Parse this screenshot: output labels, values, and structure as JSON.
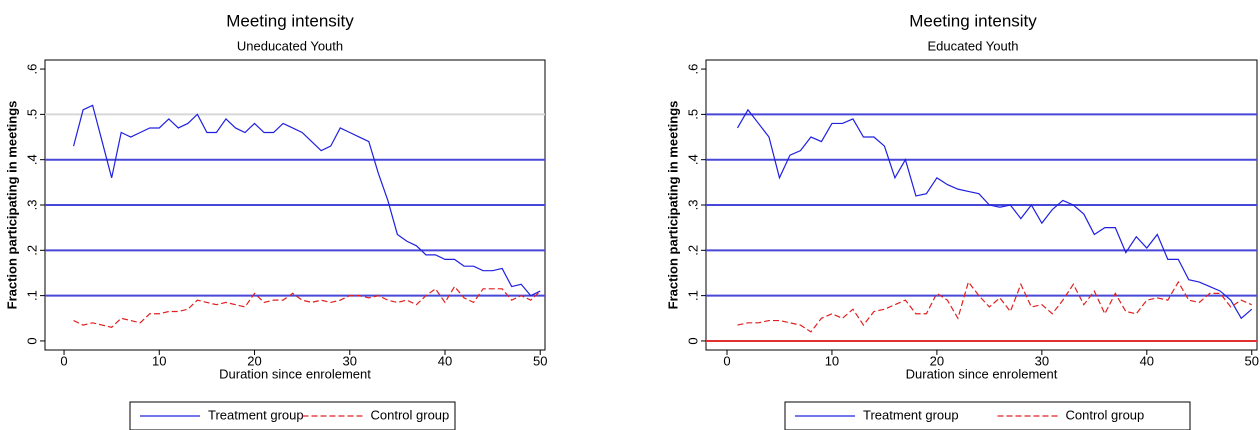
{
  "chart_data": [
    {
      "type": "line",
      "title": "Meeting intensity",
      "subtitle": "Uneducated Youth",
      "x_label": "Duration since enrolement",
      "y_label": "Fraction participating in meetings",
      "x": [
        1,
        2,
        3,
        4,
        5,
        6,
        7,
        8,
        9,
        10,
        11,
        12,
        13,
        14,
        15,
        16,
        17,
        18,
        19,
        20,
        21,
        22,
        23,
        24,
        25,
        26,
        27,
        28,
        29,
        30,
        31,
        32,
        33,
        34,
        35,
        36,
        37,
        38,
        39,
        40,
        41,
        42,
        43,
        44,
        45,
        46,
        47,
        48,
        49,
        50
      ],
      "series": [
        {
          "name": "Treatment group",
          "color": "#2020e0",
          "style": "solid",
          "values": [
            0.43,
            0.51,
            0.52,
            0.44,
            0.36,
            0.46,
            0.45,
            0.46,
            0.47,
            0.47,
            0.49,
            0.47,
            0.48,
            0.5,
            0.46,
            0.46,
            0.49,
            0.47,
            0.46,
            0.48,
            0.46,
            0.46,
            0.48,
            0.47,
            0.46,
            0.44,
            0.42,
            0.43,
            0.47,
            0.46,
            0.45,
            0.44,
            0.37,
            0.31,
            0.235,
            0.22,
            0.21,
            0.19,
            0.19,
            0.18,
            0.18,
            0.165,
            0.165,
            0.155,
            0.155,
            0.16,
            0.12,
            0.125,
            0.1,
            0.11
          ]
        },
        {
          "name": "Control group",
          "color": "#e02020",
          "style": "dashed",
          "values": [
            0.045,
            0.035,
            0.04,
            0.035,
            0.03,
            0.05,
            0.045,
            0.04,
            0.06,
            0.06,
            0.065,
            0.065,
            0.07,
            0.09,
            0.085,
            0.08,
            0.085,
            0.08,
            0.075,
            0.105,
            0.085,
            0.09,
            0.09,
            0.105,
            0.09,
            0.085,
            0.09,
            0.085,
            0.09,
            0.1,
            0.1,
            0.095,
            0.1,
            0.09,
            0.085,
            0.09,
            0.08,
            0.1,
            0.115,
            0.085,
            0.12,
            0.095,
            0.085,
            0.115,
            0.115,
            0.115,
            0.09,
            0.1,
            0.09,
            0.11
          ]
        }
      ],
      "xlim": [
        -2,
        50.5
      ],
      "xticks": [
        0,
        10,
        20,
        30,
        40,
        50
      ],
      "ylim": [
        -0.02,
        0.62
      ],
      "yticks": [
        0,
        {
          "value": 0.1,
          "label": ".1"
        },
        {
          "value": 0.2,
          "label": ".2"
        },
        {
          "value": 0.3,
          "label": ".3"
        },
        {
          "value": 0.4,
          "label": ".4"
        },
        {
          "value": 0.5,
          "label": ".5"
        },
        {
          "value": 0.6,
          "label": ".6"
        }
      ],
      "reference_lines": [
        {
          "value": 0.1,
          "color": "#4848d8"
        },
        {
          "value": 0.2,
          "color": "#4848d8"
        },
        {
          "value": 0.3,
          "color": "#4848d8"
        },
        {
          "value": 0.4,
          "color": "#4848d8"
        },
        {
          "value": 0.5,
          "color": "#d8d8d8"
        }
      ],
      "legend": "bottom"
    },
    {
      "type": "line",
      "title": "Meeting intensity",
      "subtitle": "Educated Youth",
      "x_label": "Duration since enrolement",
      "y_label": "Fraction participating in meetings",
      "x": [
        1,
        2,
        3,
        4,
        5,
        6,
        7,
        8,
        9,
        10,
        11,
        12,
        13,
        14,
        15,
        16,
        17,
        18,
        19,
        20,
        21,
        22,
        23,
        24,
        25,
        26,
        27,
        28,
        29,
        30,
        31,
        32,
        33,
        34,
        35,
        36,
        37,
        38,
        39,
        40,
        41,
        42,
        43,
        44,
        45,
        46,
        47,
        48,
        49,
        50
      ],
      "series": [
        {
          "name": "Treatment group",
          "color": "#2020e0",
          "style": "solid",
          "values": [
            0.47,
            0.51,
            0.48,
            0.45,
            0.36,
            0.41,
            0.42,
            0.45,
            0.44,
            0.48,
            0.48,
            0.49,
            0.45,
            0.45,
            0.43,
            0.36,
            0.4,
            0.32,
            0.325,
            0.36,
            0.345,
            0.335,
            0.33,
            0.325,
            0.3,
            0.295,
            0.3,
            0.27,
            0.3,
            0.26,
            0.29,
            0.31,
            0.3,
            0.28,
            0.235,
            0.25,
            0.25,
            0.195,
            0.23,
            0.205,
            0.235,
            0.18,
            0.18,
            0.135,
            0.13,
            0.12,
            0.11,
            0.09,
            0.05,
            0.07
          ]
        },
        {
          "name": "Control group",
          "color": "#e02020",
          "style": "dashed",
          "values": [
            0.035,
            0.04,
            0.04,
            0.045,
            0.045,
            0.04,
            0.035,
            0.02,
            0.05,
            0.06,
            0.05,
            0.07,
            0.035,
            0.065,
            0.07,
            0.08,
            0.09,
            0.06,
            0.06,
            0.105,
            0.09,
            0.05,
            0.13,
            0.1,
            0.075,
            0.095,
            0.065,
            0.125,
            0.075,
            0.08,
            0.06,
            0.09,
            0.125,
            0.08,
            0.11,
            0.06,
            0.105,
            0.065,
            0.06,
            0.09,
            0.095,
            0.09,
            0.13,
            0.09,
            0.085,
            0.105,
            0.105,
            0.075,
            0.09,
            0.08
          ]
        }
      ],
      "xlim": [
        -2,
        50.5
      ],
      "xticks": [
        0,
        10,
        20,
        30,
        40,
        50
      ],
      "ylim": [
        -0.02,
        0.62
      ],
      "yticks": [
        0,
        {
          "value": 0.1,
          "label": ".1"
        },
        {
          "value": 0.2,
          "label": ".2"
        },
        {
          "value": 0.3,
          "label": ".3"
        },
        {
          "value": 0.4,
          "label": ".4"
        },
        {
          "value": 0.5,
          "label": ".5"
        },
        {
          "value": 0.6,
          "label": ".6"
        }
      ],
      "reference_lines": [
        {
          "value": 0,
          "color": "#e03030"
        },
        {
          "value": 0.1,
          "color": "#4848d8"
        },
        {
          "value": 0.2,
          "color": "#4848d8"
        },
        {
          "value": 0.3,
          "color": "#4848d8"
        },
        {
          "value": 0.4,
          "color": "#4848d8"
        },
        {
          "value": 0.5,
          "color": "#4848d8"
        }
      ],
      "legend": "bottom"
    }
  ]
}
